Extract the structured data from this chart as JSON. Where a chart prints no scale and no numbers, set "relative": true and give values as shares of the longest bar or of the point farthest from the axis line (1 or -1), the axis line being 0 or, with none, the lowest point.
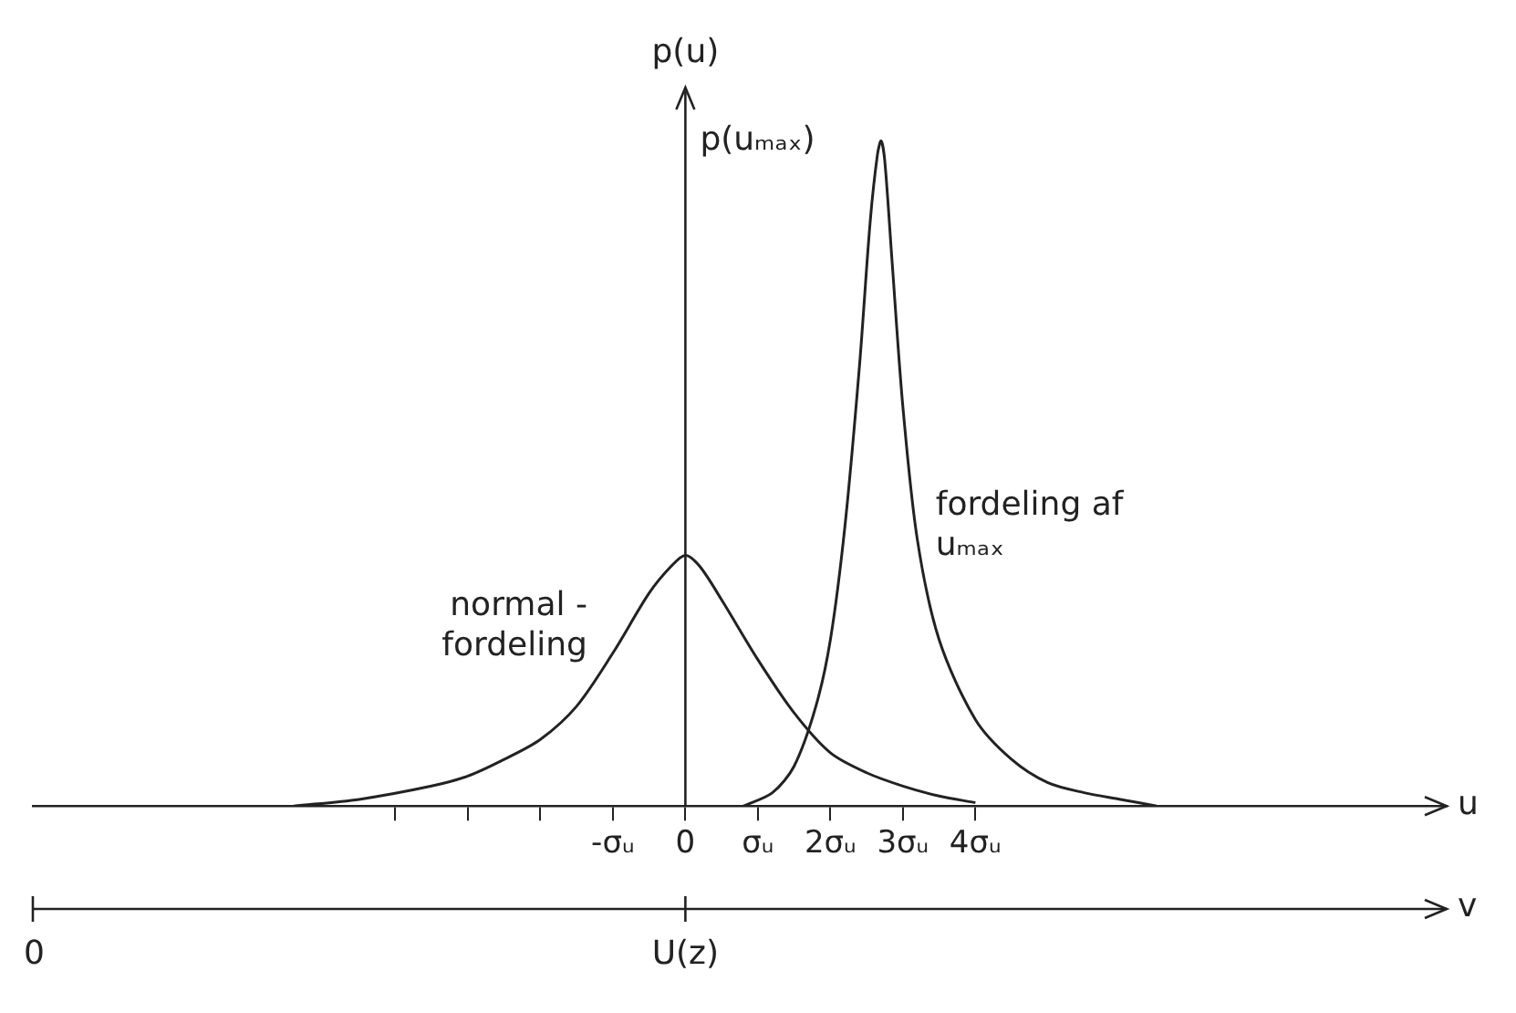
{
  "chart_data": {
    "type": "line",
    "relative": true,
    "xlabel": "u",
    "ylabel": "p(u)",
    "x2label": "v",
    "xlim": [
      -9,
      10.5
    ],
    "xticks": [
      {
        "value": -4,
        "label": null
      },
      {
        "value": -3,
        "label": null
      },
      {
        "value": -2,
        "label": null
      },
      {
        "value": -1,
        "label": "-σᵤ"
      },
      {
        "value": 0,
        "label": "0"
      },
      {
        "value": 1,
        "label": "σᵤ"
      },
      {
        "value": 2,
        "label": "2σᵤ"
      },
      {
        "value": 3,
        "label": "3σᵤ"
      },
      {
        "value": 4,
        "label": "4σᵤ"
      }
    ],
    "series": [
      {
        "color": "#222222",
        "x": [
          -5.4,
          -4.5,
          -3.5,
          -3,
          -2.5,
          -2,
          -1.5,
          -1,
          -0.5,
          -0.2,
          0,
          0.2,
          0.5,
          1,
          1.5,
          2,
          2.5,
          3,
          3.5,
          4
        ],
        "values": [
          0,
          0.01,
          0.03,
          0.045,
          0.07,
          0.1,
          0.15,
          0.23,
          0.32,
          0.36,
          0.377,
          0.36,
          0.31,
          0.22,
          0.14,
          0.08,
          0.05,
          0.03,
          0.015,
          0.005
        ]
      },
      {
        "color": "#222222",
        "x": [
          0.8,
          1.2,
          1.5,
          1.8,
          2.0,
          2.2,
          2.4,
          2.55,
          2.65,
          2.7,
          2.75,
          2.85,
          3.0,
          3.2,
          3.5,
          4.0,
          4.5,
          5.0,
          5.5,
          6.0,
          6.5
        ],
        "values": [
          0,
          0.02,
          0.06,
          0.15,
          0.25,
          0.42,
          0.66,
          0.88,
          0.98,
          1,
          0.97,
          0.82,
          0.6,
          0.4,
          0.25,
          0.13,
          0.07,
          0.035,
          0.02,
          0.01,
          0
        ]
      }
    ],
    "annotations": [
      {
        "text": "normal -\nfordeling",
        "x": -1,
        "y": 0.22
      },
      {
        "text": "fordeling af\nuₘₐₓ",
        "x": 3.2,
        "y": 0.42
      },
      "p(uₘₐₓ)",
      "0",
      "U(z)"
    ]
  }
}
